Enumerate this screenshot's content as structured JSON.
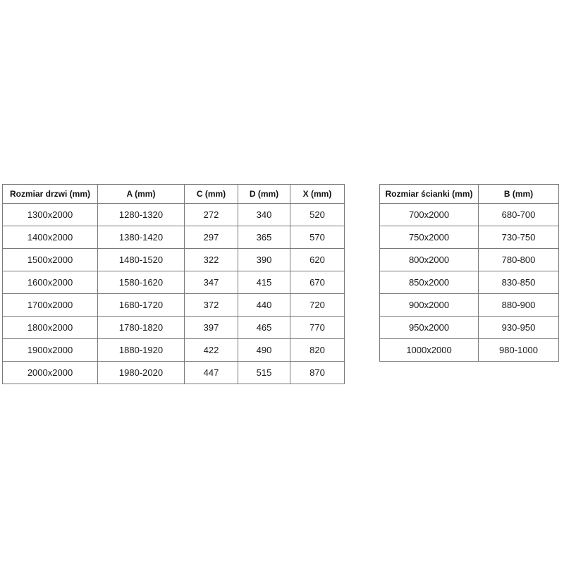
{
  "page": {
    "background_color": "#ffffff",
    "text_color": "#1a1a1a",
    "border_color": "#7a7a7a"
  },
  "tables": [
    {
      "id": "door-sizes-table",
      "headers": [
        "Rozmiar drzwi (mm)",
        "A (mm)",
        "C (mm)",
        "D (mm)",
        "X (mm)"
      ],
      "rows": [
        [
          "1300x2000",
          "1280-1320",
          "272",
          "340",
          "520"
        ],
        [
          "1400x2000",
          "1380-1420",
          "297",
          "365",
          "570"
        ],
        [
          "1500x2000",
          "1480-1520",
          "322",
          "390",
          "620"
        ],
        [
          "1600x2000",
          "1580-1620",
          "347",
          "415",
          "670"
        ],
        [
          "1700x2000",
          "1680-1720",
          "372",
          "440",
          "720"
        ],
        [
          "1800x2000",
          "1780-1820",
          "397",
          "465",
          "770"
        ],
        [
          "1900x2000",
          "1880-1920",
          "422",
          "490",
          "820"
        ],
        [
          "2000x2000",
          "1980-2020",
          "447",
          "515",
          "870"
        ]
      ]
    },
    {
      "id": "wall-sizes-table",
      "headers": [
        "Rozmiar ścianki (mm)",
        "B (mm)"
      ],
      "rows": [
        [
          "700x2000",
          "680-700"
        ],
        [
          "750x2000",
          "730-750"
        ],
        [
          "800x2000",
          "780-800"
        ],
        [
          "850x2000",
          "830-850"
        ],
        [
          "900x2000",
          "880-900"
        ],
        [
          "950x2000",
          "930-950"
        ],
        [
          "1000x2000",
          "980-1000"
        ]
      ]
    }
  ]
}
